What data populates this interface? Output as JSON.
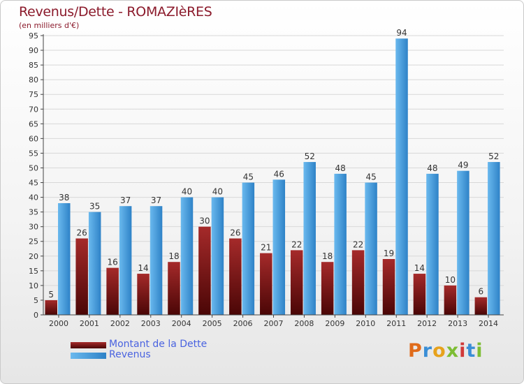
{
  "header": {
    "title": "Revenus/Dette - ROMAZIèRES",
    "subtitle": "(en milliers d'€)"
  },
  "legend": {
    "items": [
      {
        "label": "Montant de la Dette",
        "color": "#7a1212"
      },
      {
        "label": "Revenus",
        "color": "#4aa3e6"
      }
    ]
  },
  "logo": {
    "letters": [
      "P",
      "r",
      "o",
      "x",
      "i",
      "t",
      "i"
    ],
    "colors": [
      "#e06b1a",
      "#3a8ed6",
      "#e7a21c",
      "#7dbd34",
      "#d13a3a",
      "#3a8ed6",
      "#7dbd34"
    ]
  },
  "colors": {
    "debt_top": "#a52a2a",
    "debt_bottom": "#4a0606",
    "revenue_light": "#6ab9ee",
    "revenue_dark": "#2e82c7",
    "grid": "#d8d8d8",
    "axis": "#444444"
  },
  "chart_data": {
    "type": "bar",
    "title": "Revenus/Dette - ROMAZIèRES",
    "subtitle": "(en milliers d'€)",
    "categories": [
      "2000",
      "2001",
      "2002",
      "2003",
      "2004",
      "2005",
      "2006",
      "2007",
      "2008",
      "2009",
      "2010",
      "2011",
      "2012",
      "2013",
      "2014"
    ],
    "series": [
      {
        "name": "Montant de la Dette",
        "values": [
          5,
          26,
          16,
          14,
          18,
          30,
          26,
          21,
          22,
          18,
          22,
          19,
          14,
          10,
          6
        ]
      },
      {
        "name": "Revenus",
        "values": [
          38,
          35,
          37,
          37,
          40,
          40,
          45,
          46,
          52,
          48,
          45,
          94,
          48,
          49,
          52
        ]
      }
    ],
    "ylim": [
      0,
      95
    ],
    "yticks": [
      0,
      5,
      10,
      15,
      20,
      25,
      30,
      35,
      40,
      45,
      50,
      55,
      60,
      65,
      70,
      75,
      80,
      85,
      90,
      95
    ],
    "grid": true,
    "legend": "bottom-left"
  }
}
